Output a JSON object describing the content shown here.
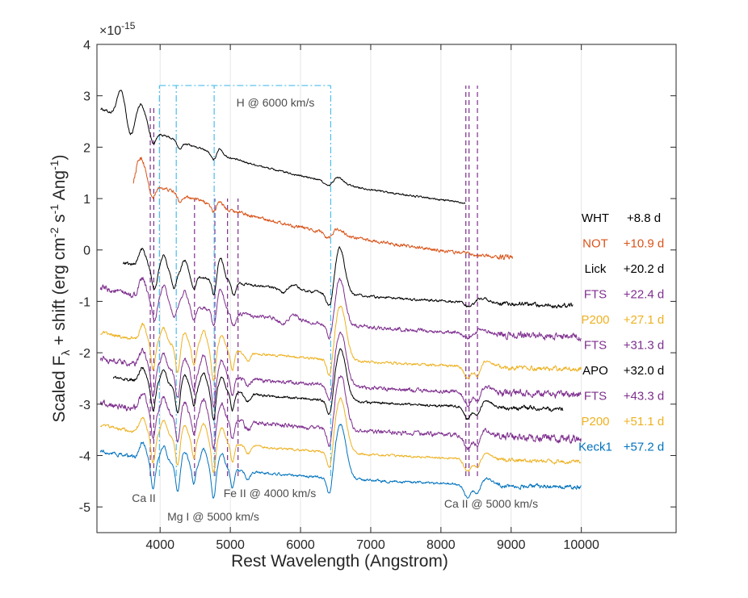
{
  "chart_data": {
    "type": "line",
    "title": "",
    "xlabel": "Rest Wavelength (Angstrom)",
    "ylabel_parts": [
      "Scaled F",
      "λ",
      " + shift (erg cm",
      "-2",
      " s",
      "-1",
      " Ang",
      "-1",
      ")"
    ],
    "xlim": [
      3100,
      11350
    ],
    "ylim": [
      -5.5,
      4
    ],
    "y_exponent_label": "×10",
    "y_exponent_power": "-15",
    "x_ticks": [
      4000,
      5000,
      6000,
      7000,
      8000,
      9000,
      10000
    ],
    "x_tick_labels": [
      "4000",
      "5000",
      "6000",
      "7000",
      "8000",
      "9000",
      "10000"
    ],
    "y_ticks": [
      4,
      3,
      2,
      1,
      0,
      -1,
      -2,
      -3,
      -4,
      -5
    ],
    "y_tick_labels": [
      "4",
      "3",
      "2",
      "1",
      "0",
      "-1",
      "-2",
      "-3",
      "-4",
      "-5"
    ],
    "grid": "vertical",
    "series": [
      {
        "name": "WHT",
        "epoch": "+8.8 d",
        "color": "#000000",
        "x_range": [
          3150,
          8350
        ],
        "offset": 0.7,
        "scale": 1.0,
        "key": "early",
        "noise": 0.035
      },
      {
        "name": "NOT",
        "epoch": "+10.9 d",
        "color": "#d95319",
        "x_range": [
          3620,
          9020
        ],
        "offset": -0.28,
        "scale": 0.97,
        "key": "early2",
        "noise": 0.06
      },
      {
        "name": "Lick",
        "epoch": "+20.2 d",
        "color": "#000000",
        "x_range": [
          3470,
          9880
        ],
        "offset": -0.75,
        "scale": 1.0,
        "key": "mid",
        "noise": 0.045
      },
      {
        "name": "FTS",
        "epoch": "+22.4 d",
        "color": "#7e2f8e",
        "x_range": [
          3150,
          10000
        ],
        "offset": -1.35,
        "scale": 1.0,
        "key": "mid",
        "noise": 0.07
      },
      {
        "name": "P200",
        "epoch": "+27.1 d",
        "color": "#edb120",
        "x_range": [
          3150,
          10000
        ],
        "offset": -1.95,
        "scale": 1.0,
        "key": "late",
        "noise": 0.045
      },
      {
        "name": "FTS",
        "epoch": "+31.3 d",
        "color": "#7e2f8e",
        "x_range": [
          3150,
          10000
        ],
        "offset": -2.45,
        "scale": 1.0,
        "key": "late",
        "noise": 0.07
      },
      {
        "name": "APO",
        "epoch": "+32.0 d",
        "color": "#000000",
        "x_range": [
          3330,
          9740
        ],
        "offset": -2.75,
        "scale": 0.95,
        "key": "late",
        "noise": 0.045
      },
      {
        "name": "FTS",
        "epoch": "+43.3 d",
        "color": "#7e2f8e",
        "x_range": [
          3150,
          10000
        ],
        "offset": -3.3,
        "scale": 1.0,
        "key": "late",
        "noise": 0.08
      },
      {
        "name": "P200",
        "epoch": "+51.1 d",
        "color": "#edb120",
        "x_range": [
          3150,
          10000
        ],
        "offset": -3.75,
        "scale": 1.0,
        "key": "late",
        "noise": 0.04
      },
      {
        "name": "Keck1",
        "epoch": "+57.2 d",
        "color": "#0072bd",
        "x_range": [
          3150,
          10000
        ],
        "offset": -4.25,
        "scale": 1.0,
        "key": "late",
        "noise": 0.045
      }
    ],
    "line_markers": [
      {
        "group": "Ca II",
        "label": "Ca II",
        "color": "#7e2f8e",
        "style": "dashed",
        "x": [
          3860,
          3910
        ],
        "y_range": [
          -4.4,
          2.8
        ]
      },
      {
        "group": "Mg I @ 5000 km/s",
        "label": "Mg I @ 5000 km/s",
        "color": "#7e2f8e",
        "style": "dashed",
        "x": [
          4490,
          4780
        ],
        "y_range": [
          -4.4,
          1.0
        ]
      },
      {
        "group": "Fe II @ 4000 km/s",
        "label": "Fe II @ 4000 km/s",
        "color": "#7e2f8e",
        "style": "dashed",
        "x": [
          4960,
          5110
        ],
        "y_range": [
          -4.4,
          1.0
        ]
      },
      {
        "group": "Ca II @ 5000 km/s",
        "label": "Ca II @ 5000 km/s",
        "color": "#7e2f8e",
        "style": "dashed",
        "x": [
          8355,
          8400,
          8520
        ],
        "y_range": [
          -4.4,
          3.2
        ]
      },
      {
        "group": "H @ 6000 km/s",
        "label": "H @ 6000 km/s",
        "color": "#4dbeee",
        "style": "dashdot",
        "x": [
          3990,
          4230,
          4770,
          6430
        ],
        "y_range": [
          -4.4,
          3.2
        ]
      }
    ]
  }
}
